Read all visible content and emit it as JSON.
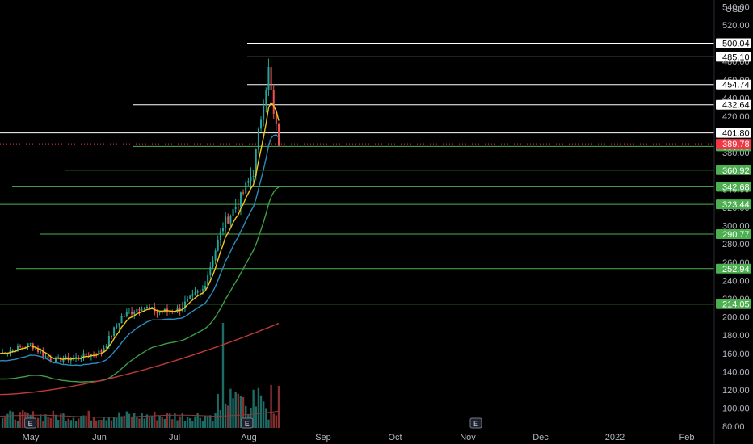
{
  "chart_data": {
    "type": "candlestick",
    "currency": "USD",
    "x_ticks": [
      "May",
      "Jun",
      "Jul",
      "Aug",
      "Sep",
      "Oct",
      "Nov",
      "Dec",
      "2022",
      "Feb"
    ],
    "y_ticks": [
      "80.00",
      "100.00",
      "120.00",
      "140.00",
      "160.00",
      "180.00",
      "200.00",
      "220.00",
      "240.00",
      "260.00",
      "280.00",
      "300.00",
      "320.00",
      "340.00",
      "360.00",
      "380.00",
      "400.00",
      "420.00",
      "440.00",
      "460.00",
      "480.00",
      "500.00",
      "520.00",
      "540.00"
    ],
    "ylim": [
      78,
      542
    ],
    "last_price": {
      "label": "389.78",
      "value": 389.78
    },
    "resistance_levels": [
      {
        "label": "500.04",
        "value": 500.04
      },
      {
        "label": "485.10",
        "value": 485.1
      },
      {
        "label": "454.74",
        "value": 454.74
      },
      {
        "label": "432.64",
        "value": 432.64
      },
      {
        "label": "401.80",
        "value": 401.8
      }
    ],
    "support_levels": [
      {
        "label": "386.93",
        "value": 386.93
      },
      {
        "label": "360.92",
        "value": 360.92
      },
      {
        "label": "342.68",
        "value": 342.68
      },
      {
        "label": "323.44",
        "value": 323.44
      },
      {
        "label": "290.77",
        "value": 290.77
      },
      {
        "label": "252.94",
        "value": 252.94
      },
      {
        "label": "214.05",
        "value": 214.05
      }
    ],
    "events": [
      {
        "label": "E",
        "month_index": 0.12
      },
      {
        "label": "E",
        "month_index": 3.15
      },
      {
        "label": "E",
        "month_index": 6.35
      }
    ],
    "colors": {
      "up": "#26a69a",
      "down": "#ef5350",
      "ema_fast": "#f5c518",
      "ema_mid": "#2a8cbf",
      "ema_slow": "#3f9d45",
      "sma_long": "#c0393a",
      "resistance": "#ffffff",
      "support": "#4caf50",
      "last": "#f23645",
      "support_label_bg": "#4caf50",
      "resistance_label_bg": "#ffffff"
    }
  }
}
